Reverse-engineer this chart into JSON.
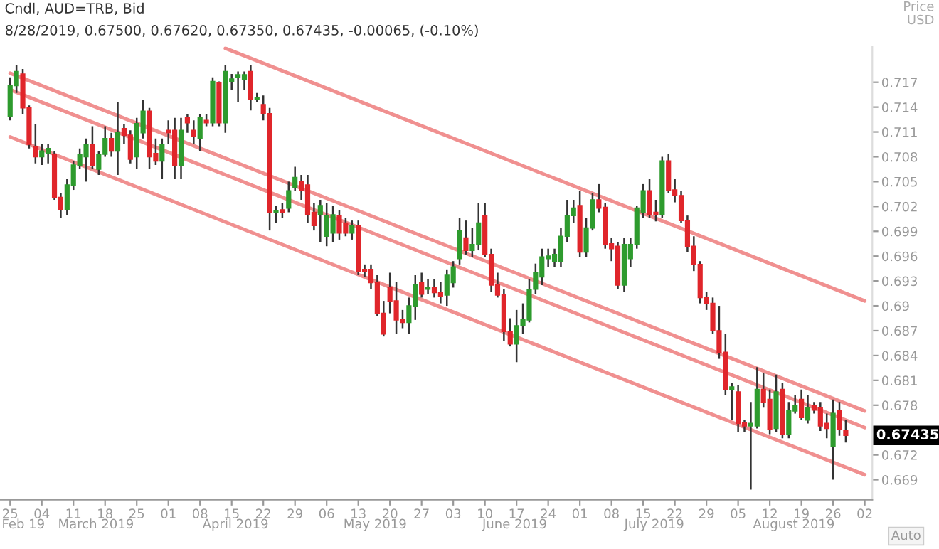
{
  "chart_data": {
    "type": "candlestick",
    "title": "Cndl, AUD=TRB, Bid",
    "subtitle": "8/28/2019, 0.67500, 0.67620, 0.67350, 0.67435, -0.00065, (-0.10%)",
    "ylabel": "Price\nUSD",
    "categories": [
      "25",
      null,
      null,
      null,
      null,
      "04",
      null,
      null,
      null,
      null,
      "11",
      null,
      null,
      null,
      null,
      "18",
      null,
      null,
      null,
      null,
      "25",
      null,
      null,
      null,
      null,
      "01",
      null,
      null,
      null,
      null,
      "08",
      null,
      null,
      null,
      null,
      "15",
      null,
      null,
      null,
      null,
      "22",
      null,
      null,
      null,
      null,
      "29",
      null,
      null,
      null,
      null,
      "06",
      null,
      null,
      null,
      null,
      "13",
      null,
      null,
      null,
      null,
      "20",
      null,
      null,
      null,
      null,
      "27",
      null,
      null,
      null,
      null,
      "03",
      null,
      null,
      null,
      null,
      "10",
      null,
      null,
      null,
      null,
      "17",
      null,
      null,
      null,
      null,
      "24",
      null,
      null,
      null,
      null,
      "01",
      null,
      null,
      null,
      null,
      "08",
      null,
      null,
      null,
      null,
      "15",
      null,
      null,
      null,
      null,
      "22",
      null,
      null,
      null,
      null,
      "29",
      null,
      null,
      null,
      null,
      "05",
      null,
      null,
      null,
      null,
      "12",
      null,
      null,
      null,
      null,
      "19",
      null,
      null,
      null,
      null,
      "26",
      null,
      null,
      null,
      null,
      "02"
    ],
    "ohlc": [
      [
        0.7129,
        0.7176,
        0.7124,
        0.7166
      ],
      [
        0.7166,
        0.7191,
        0.7157,
        0.7183
      ],
      [
        0.718,
        0.7186,
        0.7132,
        0.7139
      ],
      [
        0.7139,
        0.7142,
        0.709,
        0.7095
      ],
      [
        0.7092,
        0.712,
        0.7072,
        0.708
      ],
      [
        0.708,
        0.7095,
        0.707,
        0.7087
      ],
      [
        0.7084,
        0.7095,
        0.7072,
        0.709
      ],
      [
        0.7083,
        0.7087,
        0.7028,
        0.7031
      ],
      [
        0.7031,
        0.7036,
        0.7006,
        0.7016
      ],
      [
        0.7016,
        0.7053,
        0.701,
        0.7046
      ],
      [
        0.7046,
        0.7075,
        0.704,
        0.707
      ],
      [
        0.707,
        0.709,
        0.7065,
        0.7083
      ],
      [
        0.708,
        0.7102,
        0.705,
        0.7095
      ],
      [
        0.7095,
        0.7117,
        0.7065,
        0.707
      ],
      [
        0.7065,
        0.7087,
        0.7058,
        0.7083
      ],
      [
        0.7083,
        0.7117,
        0.708,
        0.7102
      ],
      [
        0.7102,
        0.7109,
        0.708,
        0.7087
      ],
      [
        0.7087,
        0.7146,
        0.7058,
        0.7109
      ],
      [
        0.7114,
        0.712,
        0.7095,
        0.7106
      ],
      [
        0.7106,
        0.7112,
        0.7072,
        0.7077
      ],
      [
        0.708,
        0.7127,
        0.7065,
        0.712
      ],
      [
        0.7109,
        0.7149,
        0.7102,
        0.7135
      ],
      [
        0.7135,
        0.7139,
        0.7065,
        0.708
      ],
      [
        0.7084,
        0.7102,
        0.707,
        0.7075
      ],
      [
        0.7075,
        0.7102,
        0.7053,
        0.7095
      ],
      [
        0.7112,
        0.7124,
        0.7095,
        0.7109
      ],
      [
        0.7112,
        0.7127,
        0.7053,
        0.707
      ],
      [
        0.707,
        0.7127,
        0.7053,
        0.7112
      ],
      [
        0.7127,
        0.7132,
        0.7109,
        0.7121
      ],
      [
        0.7112,
        0.7124,
        0.7095,
        0.7105
      ],
      [
        0.7102,
        0.7132,
        0.7087,
        0.7127
      ],
      [
        0.7124,
        0.7132,
        0.7117,
        0.7121
      ],
      [
        0.7121,
        0.7176,
        0.7117,
        0.7171
      ],
      [
        0.7169,
        0.7171,
        0.7117,
        0.7121
      ],
      [
        0.7121,
        0.7191,
        0.7109,
        0.7183
      ],
      [
        0.7171,
        0.718,
        0.7161,
        0.7174
      ],
      [
        0.7176,
        0.7183,
        0.7146,
        0.7179
      ],
      [
        0.7173,
        0.7183,
        0.7161,
        0.7179
      ],
      [
        0.7183,
        0.7191,
        0.7136,
        0.7149
      ],
      [
        0.7149,
        0.7157,
        0.7146,
        0.7151
      ],
      [
        0.7143,
        0.7154,
        0.7124,
        0.7132
      ],
      [
        0.7132,
        0.7139,
        0.6991,
        0.7013
      ],
      [
        0.7013,
        0.7021,
        0.7,
        0.7015
      ],
      [
        0.7016,
        0.7024,
        0.7006,
        0.7013
      ],
      [
        0.7018,
        0.705,
        0.7013,
        0.7039
      ],
      [
        0.7043,
        0.7068,
        0.7039,
        0.7055
      ],
      [
        0.705,
        0.7058,
        0.7028,
        0.704
      ],
      [
        0.7046,
        0.7058,
        0.7,
        0.701
      ],
      [
        0.7013,
        0.7024,
        0.6991,
        0.6997
      ],
      [
        0.701,
        0.7028,
        0.6977,
        0.7021
      ],
      [
        0.6984,
        0.7024,
        0.6972,
        0.7009
      ],
      [
        0.6988,
        0.7021,
        0.6977,
        0.701
      ],
      [
        0.7009,
        0.7016,
        0.698,
        0.6988
      ],
      [
        0.7,
        0.7006,
        0.6984,
        0.6988
      ],
      [
        0.6988,
        0.7003,
        0.698,
        0.6997
      ],
      [
        0.6997,
        0.7003,
        0.6937,
        0.6942
      ],
      [
        0.6944,
        0.695,
        0.6935,
        0.6942
      ],
      [
        0.6944,
        0.695,
        0.692,
        0.6928
      ],
      [
        0.6928,
        0.6937,
        0.6888,
        0.6891
      ],
      [
        0.6891,
        0.6906,
        0.6863,
        0.6866
      ],
      [
        0.6922,
        0.694,
        0.6891,
        0.6906
      ],
      [
        0.6906,
        0.6929,
        0.6866,
        0.6883
      ],
      [
        0.6883,
        0.6895,
        0.6873,
        0.688
      ],
      [
        0.688,
        0.691,
        0.6866,
        0.69
      ],
      [
        0.69,
        0.6937,
        0.6883,
        0.6925
      ],
      [
        0.6928,
        0.694,
        0.691,
        0.6914
      ],
      [
        0.692,
        0.6932,
        0.6914,
        0.6922
      ],
      [
        0.6922,
        0.6932,
        0.691,
        0.6916
      ],
      [
        0.6916,
        0.6929,
        0.6903,
        0.6911
      ],
      [
        0.6913,
        0.6944,
        0.69,
        0.6937
      ],
      [
        0.6928,
        0.6954,
        0.6922,
        0.6947
      ],
      [
        0.6957,
        0.7006,
        0.695,
        0.6991
      ],
      [
        0.6982,
        0.7003,
        0.6962,
        0.6967
      ],
      [
        0.6967,
        0.6994,
        0.6959,
        0.6974
      ],
      [
        0.6974,
        0.7024,
        0.6967,
        0.7
      ],
      [
        0.7009,
        0.7024,
        0.6959,
        0.6962
      ],
      [
        0.6962,
        0.6969,
        0.6917,
        0.6925
      ],
      [
        0.6925,
        0.694,
        0.691,
        0.6913
      ],
      [
        0.6913,
        0.692,
        0.6858,
        0.6869
      ],
      [
        0.6869,
        0.6885,
        0.6851,
        0.6854
      ],
      [
        0.6854,
        0.6895,
        0.6832,
        0.6876
      ],
      [
        0.6876,
        0.6903,
        0.6866,
        0.6883
      ],
      [
        0.6883,
        0.6932,
        0.688,
        0.692
      ],
      [
        0.692,
        0.6951,
        0.6914,
        0.694
      ],
      [
        0.6935,
        0.6969,
        0.6925,
        0.6959
      ],
      [
        0.6957,
        0.6969,
        0.6947,
        0.696
      ],
      [
        0.6954,
        0.6969,
        0.6947,
        0.6962
      ],
      [
        0.6954,
        0.6994,
        0.6947,
        0.6984
      ],
      [
        0.6984,
        0.7028,
        0.6977,
        0.7009
      ],
      [
        0.7009,
        0.7028,
        0.7,
        0.7018
      ],
      [
        0.7021,
        0.7039,
        0.6959,
        0.6965
      ],
      [
        0.6965,
        0.7006,
        0.6959,
        0.6994
      ],
      [
        0.6994,
        0.7036,
        0.6991,
        0.7028
      ],
      [
        0.7028,
        0.7047,
        0.7013,
        0.7018
      ],
      [
        0.7019,
        0.7024,
        0.6969,
        0.6974
      ],
      [
        0.6975,
        0.6982,
        0.6954,
        0.6969
      ],
      [
        0.6972,
        0.6977,
        0.692,
        0.6925
      ],
      [
        0.6925,
        0.6982,
        0.6917,
        0.6974
      ],
      [
        0.6957,
        0.6982,
        0.6947,
        0.6974
      ],
      [
        0.6974,
        0.7021,
        0.6969,
        0.7018
      ],
      [
        0.7013,
        0.7047,
        0.7006,
        0.7039
      ],
      [
        0.7039,
        0.7053,
        0.7006,
        0.701
      ],
      [
        0.7013,
        0.7028,
        0.7002,
        0.701
      ],
      [
        0.701,
        0.708,
        0.7006,
        0.7075
      ],
      [
        0.7075,
        0.7083,
        0.7036,
        0.704
      ],
      [
        0.704,
        0.7053,
        0.7025,
        0.7033
      ],
      [
        0.7033,
        0.7039,
        0.7,
        0.7003
      ],
      [
        0.7003,
        0.7009,
        0.6965,
        0.6972
      ],
      [
        0.6972,
        0.6984,
        0.6942,
        0.695
      ],
      [
        0.695,
        0.6954,
        0.6903,
        0.691
      ],
      [
        0.691,
        0.6917,
        0.6895,
        0.6903
      ],
      [
        0.6903,
        0.691,
        0.6866,
        0.687
      ],
      [
        0.687,
        0.69,
        0.6836,
        0.6844
      ],
      [
        0.6844,
        0.6866,
        0.6792,
        0.6799
      ],
      [
        0.6799,
        0.6807,
        0.6762,
        0.6802
      ],
      [
        0.6796,
        0.6804,
        0.6748,
        0.6758
      ],
      [
        0.6759,
        0.6762,
        0.6748,
        0.6755
      ],
      [
        0.6755,
        0.6784,
        0.6678,
        0.6758
      ],
      [
        0.6755,
        0.6826,
        0.6752,
        0.6799
      ],
      [
        0.6799,
        0.6819,
        0.6777,
        0.6784
      ],
      [
        0.6787,
        0.6799,
        0.6745,
        0.6751
      ],
      [
        0.6752,
        0.6817,
        0.6748,
        0.6796
      ],
      [
        0.6799,
        0.6807,
        0.674,
        0.6745
      ],
      [
        0.6745,
        0.6784,
        0.674,
        0.6773
      ],
      [
        0.6773,
        0.6792,
        0.677,
        0.678
      ],
      [
        0.6787,
        0.6799,
        0.6762,
        0.6765
      ],
      [
        0.6762,
        0.6792,
        0.6758,
        0.6777
      ],
      [
        0.678,
        0.6784,
        0.677,
        0.6774
      ],
      [
        0.6777,
        0.6784,
        0.6749,
        0.6755
      ],
      [
        0.6758,
        0.677,
        0.674,
        0.6752
      ],
      [
        0.673,
        0.6787,
        0.669,
        0.677
      ],
      [
        0.6774,
        0.6784,
        0.6743,
        0.6751
      ],
      [
        0.675,
        0.6762,
        0.6735,
        0.67435
      ],
      null,
      null,
      null
    ],
    "colors": [
      "#2e9b2e",
      "#2e9b2e",
      "#e0262b",
      "#e0262b",
      "#e0262b",
      "#2e9b2e",
      "#2e9b2e",
      "#e0262b",
      "#e0262b",
      "#2e9b2e",
      "#2e9b2e",
      "#2e9b2e",
      "#2e9b2e",
      "#e0262b",
      "#2e9b2e",
      "#2e9b2e",
      "#e0262b",
      "#2e9b2e",
      "#e0262b",
      "#e0262b",
      "#2e9b2e",
      "#2e9b2e",
      "#e0262b",
      "#e0262b",
      "#2e9b2e",
      "#e0262b",
      "#e0262b",
      "#2e9b2e",
      "#e0262b",
      "#e0262b",
      "#2e9b2e",
      "#e0262b",
      "#2e9b2e",
      "#e0262b",
      "#2e9b2e",
      "#2e9b2e",
      "#2e9b2e",
      "#2e9b2e",
      "#e0262b",
      "#2e9b2e",
      "#e0262b",
      "#e0262b",
      "#2e9b2e",
      "#e0262b",
      "#2e9b2e",
      "#2e9b2e",
      "#e0262b",
      "#e0262b",
      "#e0262b",
      "#2e9b2e",
      "#2e9b2e",
      "#2e9b2e",
      "#e0262b",
      "#e0262b",
      "#2e9b2e",
      "#e0262b",
      "#e0262b",
      "#e0262b",
      "#e0262b",
      "#e0262b",
      "#e0262b",
      "#e0262b",
      "#e0262b",
      "#2e9b2e",
      "#2e9b2e",
      "#e0262b",
      "#2e9b2e",
      "#e0262b",
      "#e0262b",
      "#2e9b2e",
      "#2e9b2e",
      "#2e9b2e",
      "#e0262b",
      "#2e9b2e",
      "#2e9b2e",
      "#e0262b",
      "#e0262b",
      "#e0262b",
      "#e0262b",
      "#e0262b",
      "#2e9b2e",
      "#2e9b2e",
      "#2e9b2e",
      "#2e9b2e",
      "#2e9b2e",
      "#2e9b2e",
      "#2e9b2e",
      "#2e9b2e",
      "#2e9b2e",
      "#2e9b2e",
      "#e0262b",
      "#2e9b2e",
      "#2e9b2e",
      "#e0262b",
      "#e0262b",
      "#e0262b",
      "#e0262b",
      "#2e9b2e",
      "#2e9b2e",
      "#2e9b2e",
      "#2e9b2e",
      "#e0262b",
      "#e0262b",
      "#2e9b2e",
      "#e0262b",
      "#e0262b",
      "#e0262b",
      "#e0262b",
      "#e0262b",
      "#e0262b",
      "#e0262b",
      "#e0262b",
      "#e0262b",
      "#e0262b",
      "#2e9b2e",
      "#e0262b",
      "#e0262b",
      "#2e9b2e",
      "#2e9b2e",
      "#e0262b",
      "#e0262b",
      "#2e9b2e",
      "#e0262b",
      "#2e9b2e",
      "#2e9b2e",
      "#e0262b",
      "#2e9b2e",
      "#e0262b",
      "#e0262b",
      "#e0262b",
      "#2e9b2e",
      "#e0262b",
      "#e0262b",
      null,
      null,
      null
    ],
    "series": [
      {
        "type": "line",
        "color": "#f09090",
        "values": [
          null,
          null,
          null,
          null,
          null,
          null,
          null,
          null,
          null,
          null,
          null,
          null,
          null,
          null,
          null,
          null,
          null,
          null,
          null,
          null,
          null,
          null,
          null,
          null,
          null,
          null,
          null,
          null,
          null,
          null,
          null,
          null,
          null,
          null,
          0.7211,
          null,
          null,
          null,
          null,
          null,
          null,
          null,
          null,
          null,
          null,
          null,
          null,
          null,
          null,
          null,
          null,
          null,
          null,
          null,
          null,
          null,
          null,
          null,
          null,
          null,
          null,
          null,
          null,
          null,
          null,
          null,
          null,
          null,
          null,
          null,
          null,
          null,
          null,
          null,
          null,
          null,
          null,
          null,
          null,
          null,
          null,
          null,
          null,
          null,
          null,
          null,
          null,
          null,
          null,
          null,
          null,
          null,
          null,
          null,
          null,
          null,
          null,
          null,
          null,
          null,
          null,
          null,
          null,
          null,
          null,
          null,
          null,
          null,
          null,
          null,
          null,
          null,
          null,
          null,
          null,
          null,
          null,
          null,
          null,
          null,
          null,
          null,
          null,
          null,
          null,
          null,
          null,
          null,
          null,
          null,
          null,
          null,
          null,
          null,
          null,
          0.6906
        ]
      },
      {
        "type": "line",
        "color": "#f09090",
        "values": [
          0.7181,
          null,
          null,
          null,
          null,
          null,
          null,
          null,
          null,
          null,
          null,
          null,
          null,
          null,
          null,
          null,
          null,
          null,
          null,
          null,
          null,
          null,
          null,
          null,
          null,
          null,
          null,
          null,
          null,
          null,
          null,
          null,
          null,
          null,
          null,
          null,
          null,
          null,
          null,
          null,
          null,
          null,
          null,
          null,
          null,
          null,
          null,
          null,
          null,
          null,
          null,
          null,
          null,
          null,
          null,
          null,
          null,
          null,
          null,
          null,
          null,
          null,
          null,
          null,
          null,
          null,
          null,
          null,
          null,
          null,
          null,
          null,
          null,
          null,
          null,
          null,
          null,
          null,
          null,
          null,
          null,
          null,
          null,
          null,
          null,
          null,
          null,
          null,
          null,
          null,
          null,
          null,
          null,
          null,
          null,
          null,
          null,
          null,
          null,
          null,
          null,
          null,
          null,
          null,
          null,
          null,
          null,
          null,
          null,
          null,
          null,
          null,
          null,
          null,
          null,
          null,
          null,
          null,
          null,
          null,
          null,
          null,
          null,
          null,
          null,
          null,
          null,
          null,
          null,
          null,
          null,
          null,
          null,
          null,
          null,
          0.6773
        ]
      },
      {
        "type": "line",
        "color": "#f09090",
        "values": [
          0.7161,
          null,
          null,
          null,
          null,
          null,
          null,
          null,
          null,
          null,
          null,
          null,
          null,
          null,
          null,
          null,
          null,
          null,
          null,
          null,
          null,
          null,
          null,
          null,
          null,
          null,
          null,
          null,
          null,
          null,
          null,
          null,
          null,
          null,
          null,
          null,
          null,
          null,
          null,
          null,
          null,
          null,
          null,
          null,
          null,
          null,
          null,
          null,
          null,
          null,
          null,
          null,
          null,
          null,
          null,
          null,
          null,
          null,
          null,
          null,
          null,
          null,
          null,
          null,
          null,
          null,
          null,
          null,
          null,
          null,
          null,
          null,
          null,
          null,
          null,
          null,
          null,
          null,
          null,
          null,
          null,
          null,
          null,
          null,
          null,
          null,
          null,
          null,
          null,
          null,
          null,
          null,
          null,
          null,
          null,
          null,
          null,
          null,
          null,
          null,
          null,
          null,
          null,
          null,
          null,
          null,
          null,
          null,
          null,
          null,
          null,
          null,
          null,
          null,
          null,
          null,
          null,
          null,
          null,
          null,
          null,
          null,
          null,
          null,
          null,
          null,
          null,
          null,
          null,
          null,
          null,
          null,
          null,
          null,
          null,
          0.6753
        ]
      },
      {
        "type": "line",
        "color": "#f09090",
        "values": [
          0.7104,
          null,
          null,
          null,
          null,
          null,
          null,
          null,
          null,
          null,
          null,
          null,
          null,
          null,
          null,
          null,
          null,
          null,
          null,
          null,
          null,
          null,
          null,
          null,
          null,
          null,
          null,
          null,
          null,
          null,
          null,
          null,
          null,
          null,
          null,
          null,
          null,
          null,
          null,
          null,
          null,
          null,
          null,
          null,
          null,
          null,
          null,
          null,
          null,
          null,
          null,
          null,
          null,
          null,
          null,
          null,
          null,
          null,
          null,
          null,
          null,
          null,
          null,
          null,
          null,
          null,
          null,
          null,
          null,
          null,
          null,
          null,
          null,
          null,
          null,
          null,
          null,
          null,
          null,
          null,
          null,
          null,
          null,
          null,
          null,
          null,
          null,
          null,
          null,
          null,
          null,
          null,
          null,
          null,
          null,
          null,
          null,
          null,
          null,
          null,
          null,
          null,
          null,
          null,
          null,
          null,
          null,
          null,
          null,
          null,
          null,
          null,
          null,
          null,
          null,
          null,
          null,
          null,
          null,
          null,
          null,
          null,
          null,
          null,
          null,
          null,
          null,
          null,
          null,
          null,
          null,
          null,
          null,
          null,
          null,
          0.6696
        ]
      }
    ],
    "ylim": [
      0.6666,
      0.7213
    ],
    "yticks": [
      0.717,
      0.714,
      0.711,
      0.708,
      0.705,
      0.702,
      0.699,
      0.696,
      0.693,
      0.69,
      0.687,
      0.684,
      0.681,
      0.678,
      0.672,
      0.669
    ],
    "grid": false,
    "legend": false,
    "annotations": [
      "Feb 19",
      "March 2019",
      "April 2019",
      "May 2019",
      "June 2019",
      "July 2019",
      "August 2019",
      "Auto",
      "0.67435"
    ]
  }
}
